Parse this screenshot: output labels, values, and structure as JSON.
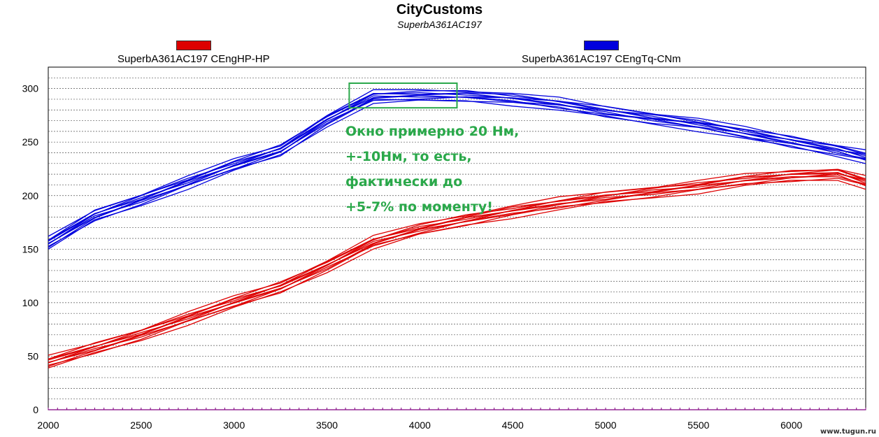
{
  "chart_data": {
    "type": "line",
    "title": "CityCustoms",
    "subtitle": "SuperbA361AC197",
    "xlim": [
      2000,
      6400
    ],
    "ylim": [
      0,
      320
    ],
    "x_ticks": [
      2000,
      2500,
      3000,
      3500,
      4000,
      4500,
      5000,
      5500,
      6000
    ],
    "y_ticks": [
      0,
      50,
      100,
      150,
      200,
      250,
      300
    ],
    "grid": true,
    "legend": "top",
    "series": [
      {
        "name": "SuperbA361AC197 CEngHP-HP",
        "color": "#dd0000",
        "x": [
          2000,
          2250,
          2500,
          2750,
          3000,
          3250,
          3500,
          3750,
          4000,
          4250,
          4500,
          4750,
          5000,
          5250,
          5500,
          5750,
          6000,
          6250,
          6400
        ],
        "y": [
          44,
          57,
          70,
          85,
          100,
          114,
          134,
          156,
          168,
          177,
          185,
          192,
          198,
          203,
          208,
          214,
          218,
          220,
          212
        ]
      },
      {
        "name": "SuperbA361AC197 CEngTq-CNm",
        "color": "#0000dd",
        "x": [
          2000,
          2250,
          2500,
          2750,
          3000,
          3250,
          3500,
          3750,
          4000,
          4250,
          4500,
          4750,
          5000,
          5250,
          5500,
          5750,
          6000,
          6250,
          6400
        ],
        "y": [
          155,
          181,
          196,
          212,
          228,
          242,
          270,
          292,
          293,
          293,
          290,
          285,
          278,
          272,
          266,
          258,
          250,
          242,
          236
        ]
      }
    ],
    "annotation_box": {
      "x": [
        3620,
        4200
      ],
      "y": [
        282,
        305
      ],
      "color": "#2aa84a"
    }
  },
  "annotation_lines": [
    "Окно примерно 20 Нм,",
    "+-10Нм, то есть,",
    "фактически до",
    "+5-7% по моменту!"
  ],
  "watermark": "www.tugun.ru"
}
